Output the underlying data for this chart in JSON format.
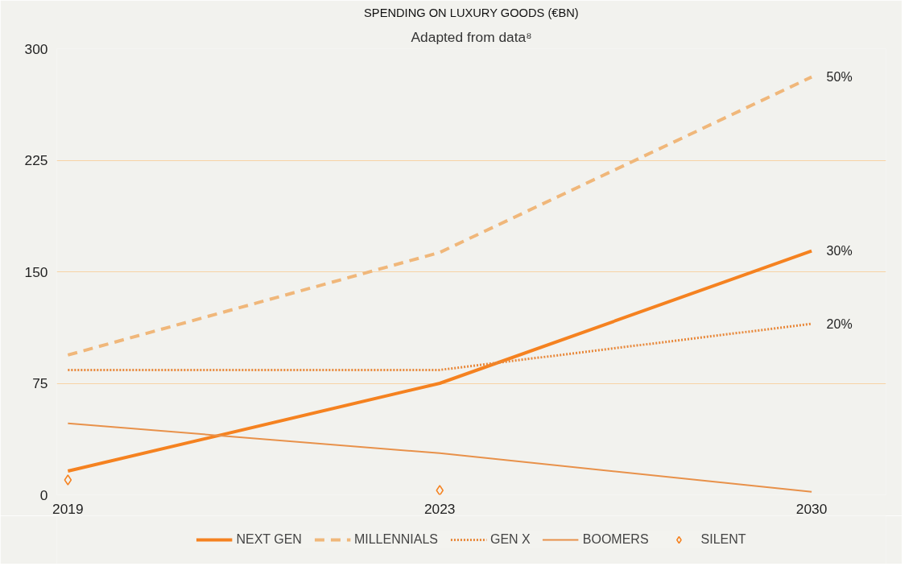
{
  "chart_data": {
    "type": "line",
    "title": "SPENDING ON LUXURY GOODS (€BN)",
    "subtitle": "Adapted from data⁸",
    "categories": [
      "2019",
      "2023",
      "2030"
    ],
    "ylim": [
      0,
      300
    ],
    "yticks": [
      0,
      75,
      150,
      225,
      300
    ],
    "grid": "y",
    "legend": "bottom",
    "series": [
      {
        "name": "NEXT GEN",
        "color": "#f58220",
        "line_style": "solid",
        "values": [
          16,
          75,
          164
        ]
      },
      {
        "name": "MILLENNIALS",
        "color": "#f0b77a",
        "line_style": "dashed",
        "values": [
          94,
          163,
          281
        ]
      },
      {
        "name": "GEN X",
        "color": "#e8883a",
        "line_style": "dotted",
        "values": [
          84,
          84,
          115
        ]
      },
      {
        "name": "BOOMERS",
        "color": "#e8914a",
        "line_style": "solid",
        "values": [
          48,
          28,
          2
        ]
      },
      {
        "name": "SILENT",
        "color": "#f58220",
        "type": "scatter",
        "marker": "diamond",
        "values": [
          10,
          3,
          null
        ]
      }
    ],
    "annotations": [
      {
        "text": "50%",
        "x": "2030",
        "y": 281
      },
      {
        "text": "30%",
        "x": "2030",
        "y": 164
      },
      {
        "text": "20%",
        "x": "2030",
        "y": 115
      }
    ]
  }
}
